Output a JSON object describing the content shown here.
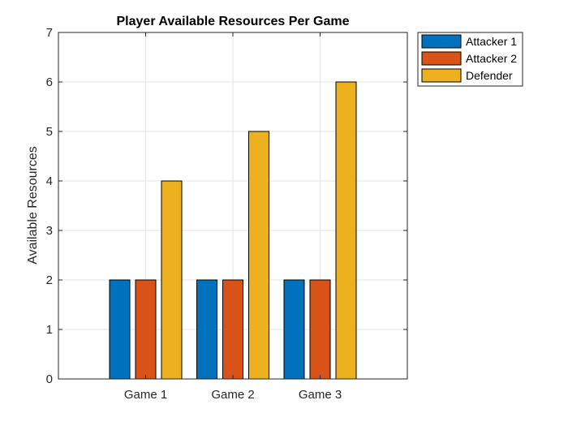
{
  "chart_data": {
    "type": "bar",
    "title": "Player Available Resources Per Game",
    "xlabel": "",
    "ylabel": "Available Resources",
    "categories": [
      "Game 1",
      "Game 2",
      "Game 3"
    ],
    "series": [
      {
        "name": "Attacker 1",
        "values": [
          2,
          2,
          2
        ],
        "color": "#0072BD"
      },
      {
        "name": "Attacker 2",
        "values": [
          2,
          2,
          2
        ],
        "color": "#D95319"
      },
      {
        "name": "Defender",
        "values": [
          4,
          5,
          6
        ],
        "color": "#EDB120"
      }
    ],
    "ylim": [
      0,
      7
    ],
    "yticks": [
      "0",
      "1",
      "2",
      "3",
      "4",
      "5",
      "6",
      "7"
    ],
    "grid": true,
    "legend_position": "outside-top-right"
  }
}
